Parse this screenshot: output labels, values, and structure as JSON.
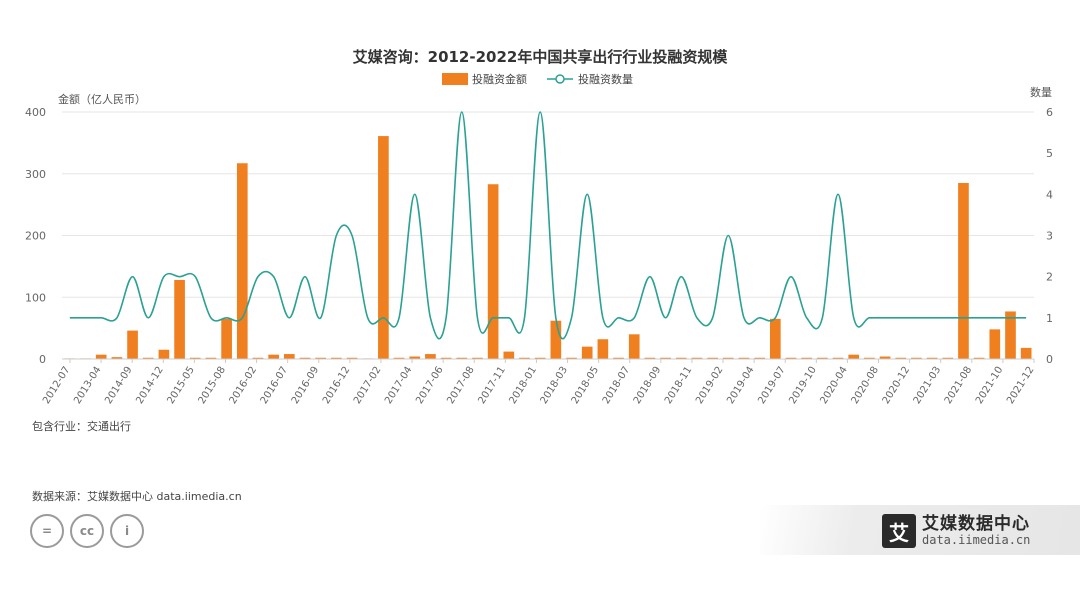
{
  "chart_data": {
    "type": "bar",
    "title": "艾媒咨询：2012-2022年中国共享出行行业投融资规模",
    "ylabel": "金额（亿人民币）",
    "y2label": "数量",
    "ylim": [
      0,
      400
    ],
    "y2lim": [
      0,
      6
    ],
    "yticks": [
      0,
      100,
      200,
      300,
      400
    ],
    "y2ticks": [
      0,
      1,
      2,
      3,
      4,
      5,
      6
    ],
    "xtick_labels": [
      "2012-07",
      "2013-04",
      "2014-09",
      "2014-12",
      "2015-05",
      "2015-08",
      "2016-02",
      "2016-07",
      "2016-09",
      "2016-12",
      "2017-02",
      "2017-04",
      "2017-06",
      "2017-08",
      "2017-11",
      "2018-01",
      "2018-03",
      "2018-05",
      "2018-07",
      "2018-09",
      "2018-11",
      "2019-02",
      "2019-04",
      "2019-07",
      "2019-10",
      "2020-04",
      "2020-08",
      "2020-12",
      "2021-03",
      "2021-08",
      "2021-10",
      "2021-12"
    ],
    "series": [
      {
        "name": "投融资金额",
        "type": "bar",
        "color": "#f07f20",
        "values": [
          1,
          1,
          7,
          3,
          46,
          2,
          15,
          128,
          2,
          2,
          65,
          317,
          2,
          7,
          8,
          2,
          2,
          2,
          2,
          1,
          361,
          2,
          4,
          8,
          2,
          2,
          2,
          283,
          12,
          2,
          2,
          62,
          2,
          20,
          32,
          2,
          40,
          2,
          2,
          2,
          2,
          2,
          2,
          2,
          2,
          65,
          2,
          2,
          2,
          2,
          7,
          2,
          4,
          2,
          2,
          2,
          2,
          285,
          2,
          48,
          77,
          18
        ]
      },
      {
        "name": "投融资数量",
        "type": "line",
        "color": "#2aa193",
        "values": [
          1,
          1,
          1,
          1,
          2,
          1,
          2,
          2,
          2,
          1,
          1,
          1,
          2,
          2,
          1,
          2,
          1,
          3,
          3,
          1,
          1,
          1,
          4,
          1,
          1,
          6,
          1,
          1,
          1,
          1,
          6,
          1,
          1,
          4,
          1,
          1,
          1,
          2,
          1,
          2,
          1,
          1,
          3,
          1,
          1,
          1,
          2,
          1,
          1,
          4,
          1,
          1,
          1,
          1,
          1,
          1,
          1,
          1,
          1,
          1,
          1,
          1
        ]
      }
    ],
    "grid": true,
    "legend": "top-center"
  },
  "footer": {
    "industry_note": "包含行业：交通出行",
    "source_note": "数据来源：艾媒数据中心 data.iimedia.cn",
    "brand_logo_char": "艾",
    "brand_name": "艾媒数据中心",
    "brand_url": "data.iimedia.cn",
    "cc_badges": [
      "=",
      "cc",
      "i"
    ]
  }
}
